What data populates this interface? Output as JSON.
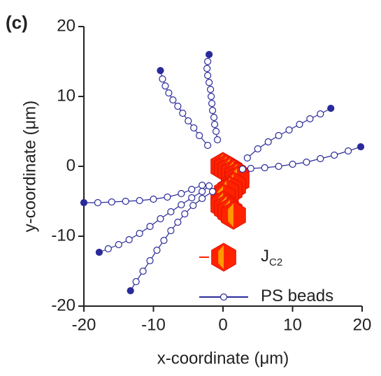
{
  "chart_data": {
    "type": "scatter",
    "title": "(c)",
    "x_label": "x-coordinate (μm)",
    "y_label": "y-coordinate (μm)",
    "xlim": [
      -20,
      20
    ],
    "ylim": [
      -20,
      20
    ],
    "xticks": [
      -20,
      -10,
      0,
      10,
      20
    ],
    "yticks": [
      -20,
      -10,
      0,
      10,
      20
    ],
    "legend": "lower right",
    "series": [
      {
        "name": "J",
        "name_subscript": "C2",
        "color": "#ff2200",
        "color2": "#ff9900",
        "marker": "hexagon",
        "line": false,
        "x": [
          0,
          0.5,
          1,
          1.5,
          2,
          2,
          1.5,
          1,
          0.5,
          0,
          0,
          0.5,
          1,
          1.5
        ],
        "y": [
          0,
          -0.3,
          -0.6,
          -1,
          -1.4,
          -2,
          -2.8,
          -3.4,
          -3.8,
          -4.5,
          -5.5,
          -6,
          -6.5,
          -7
        ]
      },
      {
        "name": "PS beads",
        "color": "#2a2a9a",
        "marker": "circle",
        "line": true,
        "x": [
          -9,
          -8.7,
          -8.3,
          -7.8,
          -7.2,
          -6.5,
          -5.8,
          -5,
          -4.2,
          -3.4,
          -2.2,
          null,
          -2,
          -2.2,
          -2.3,
          -2.2,
          -2,
          -1.8,
          -1.7,
          -1.6,
          -1.5,
          -1.3,
          -1.2,
          -1,
          -0.8,
          null,
          15.5,
          14,
          12.5,
          11,
          9.5,
          8,
          6.5,
          5,
          3.5,
          null,
          19.8,
          18,
          16,
          14,
          12,
          10,
          8,
          6,
          4,
          2.8,
          null,
          -20,
          -18,
          -16,
          -14,
          -12,
          -10,
          -8,
          -6,
          -4.5,
          -3,
          null,
          -17.8,
          -16.5,
          -15,
          -13.5,
          -12,
          -10.5,
          -9,
          -7.5,
          -6,
          -4.5,
          -3,
          -2,
          null,
          -13.3,
          -12.5,
          -11.5,
          -10.5,
          -9.5,
          -8.5,
          -7.5,
          -6.5,
          -5.5,
          -4.3,
          -3,
          -1.5
        ],
        "y": [
          13.7,
          12.5,
          11.5,
          10.5,
          9.5,
          8.6,
          7.6,
          6.5,
          5.5,
          4.4,
          3,
          null,
          16,
          15,
          14,
          13,
          12,
          11,
          10,
          9,
          8,
          7,
          6,
          5,
          3.8,
          null,
          8.3,
          7.5,
          6.8,
          6,
          5.2,
          4.4,
          3.5,
          2.5,
          1.2,
          null,
          2.8,
          2.2,
          1.6,
          1.1,
          0.6,
          0.3,
          0,
          -0.2,
          -0.3,
          -0.4,
          null,
          -5.2,
          -5.2,
          -5.1,
          -5,
          -4.9,
          -4.7,
          -4.4,
          -3.9,
          -3.3,
          -2.7,
          null,
          -12.3,
          -11.8,
          -11.2,
          -10.5,
          -9.6,
          -8.6,
          -7.5,
          -6.5,
          -5.5,
          -4.5,
          -3.6,
          -2.8,
          null,
          -17.8,
          -16.5,
          -15,
          -13.5,
          -12,
          -10.6,
          -9.2,
          -8,
          -6.8,
          -5.6,
          -4.6,
          -3.6
        ]
      }
    ]
  }
}
